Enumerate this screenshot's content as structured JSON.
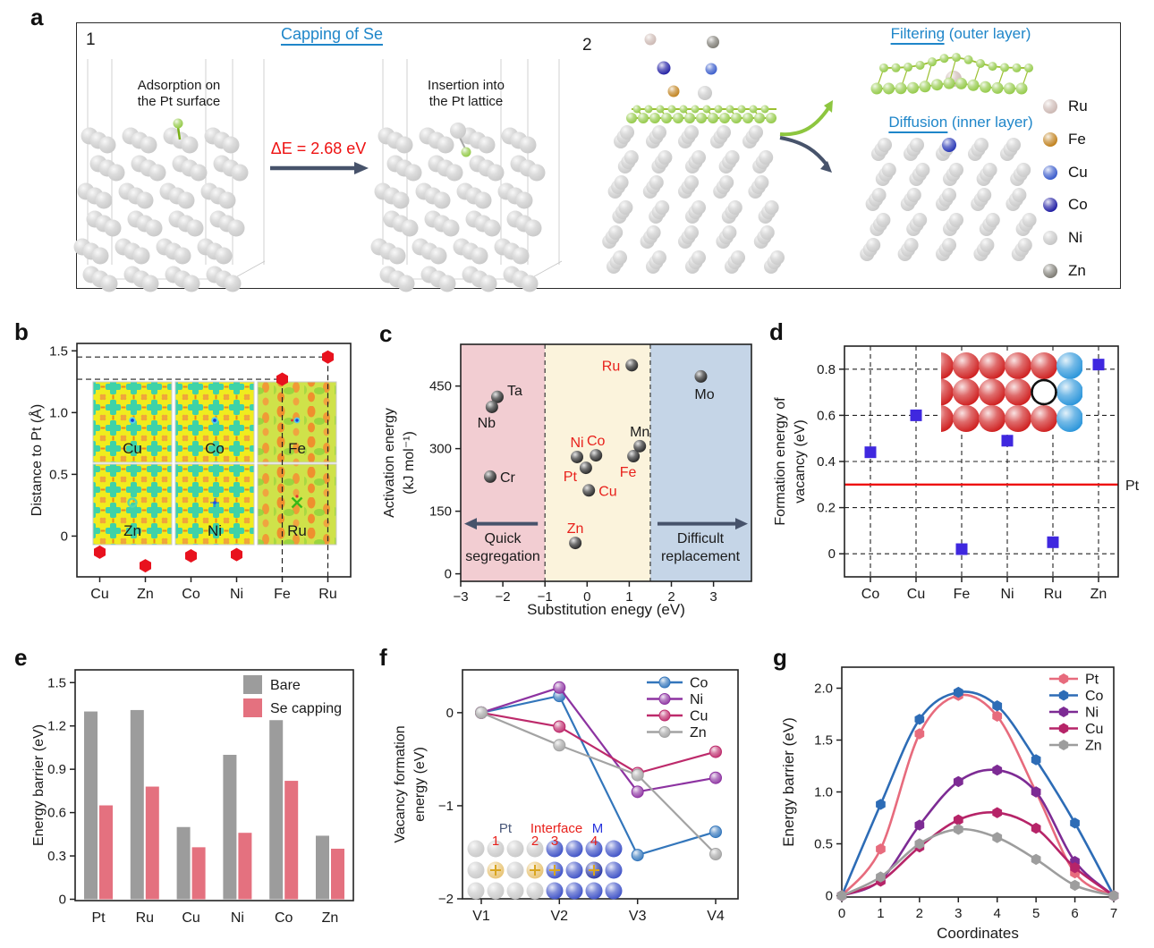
{
  "panel_letters": [
    "a",
    "b",
    "c",
    "d",
    "e",
    "f",
    "g"
  ],
  "colors": {
    "accent_blue": "#1f86c9",
    "accent_red": "#ee1111",
    "arrow_dark": "#47536b",
    "se_green": "#8cc63c",
    "pt_sphere": "#c6c6c6",
    "box_stroke": "#222222"
  },
  "panel_a": {
    "box1": {
      "number": "1",
      "title": "Capping of Se",
      "caption_left_lines": [
        "Adsorption on",
        "the Pt surface"
      ],
      "caption_right_lines": [
        "Insertion into",
        "the Pt lattice"
      ],
      "delta_e": "ΔE = 2.68 eV"
    },
    "box2": {
      "number": "2",
      "filtering": {
        "word": "Filtering",
        "rest": " (outer layer)"
      },
      "diffusion": {
        "word": "Diffusion",
        "rest": " (inner layer)"
      },
      "legend": [
        {
          "name": "Ru",
          "color": "#c9b4af"
        },
        {
          "name": "Fe",
          "color": "#bd7a10"
        },
        {
          "name": "Cu",
          "color": "#2e52c8"
        },
        {
          "name": "Co",
          "color": "#14119e"
        },
        {
          "name": "Ni",
          "color": "#c3c3c3"
        },
        {
          "name": "Zn",
          "color": "#76746c"
        }
      ]
    }
  },
  "chart_data": [
    {
      "id": "b",
      "type": "scatter",
      "ylabel": "Distance to Pt (Å)",
      "categories": [
        "Cu",
        "Zn",
        "Co",
        "Ni",
        "Fe",
        "Ru"
      ],
      "values": [
        -0.13,
        -0.24,
        -0.16,
        -0.15,
        1.27,
        1.45
      ],
      "ylim": [
        -0.33,
        1.56
      ],
      "ytick_vals": [
        0,
        0.5,
        1.0,
        1.5
      ],
      "ytick_labels": [
        "0",
        "0.5",
        "1.0",
        "1.5"
      ],
      "marker": "hexagon",
      "marker_color": "#e8121e",
      "guides": [
        {
          "value": 1.27,
          "category": "Fe"
        },
        {
          "value": 1.45,
          "category": "Ru"
        }
      ],
      "inset_labels": [
        [
          "Cu",
          "Co",
          "Fe"
        ],
        [
          "Zn",
          "Ni",
          "Ru"
        ]
      ]
    },
    {
      "id": "c",
      "type": "scatter",
      "xlabel": "Substitution enegy (eV)",
      "ylabel_lines": [
        "Activation energy",
        "(kJ mol⁻¹)"
      ],
      "xlim": [
        -3,
        3.9
      ],
      "ylim": [
        -18,
        550
      ],
      "xtick_vals": [
        -3,
        -2,
        -1,
        0,
        1,
        2,
        3
      ],
      "xtick_labels": [
        "−3",
        "−2",
        "−1",
        "0",
        "1",
        "2",
        "3"
      ],
      "ytick_vals": [
        0,
        150,
        300,
        450
      ],
      "ytick_labels": [
        "0",
        "150",
        "300",
        "450"
      ],
      "regions": [
        {
          "from": -3,
          "to": -1,
          "color": "#f2cdd2"
        },
        {
          "from": -1,
          "to": 1.5,
          "color": "#fbf3dc"
        },
        {
          "from": 1.5,
          "to": 3.9,
          "color": "#c5d5e7"
        }
      ],
      "divider_x": [
        -1,
        1.5
      ],
      "point_color": "#1a1a1a",
      "red_label_color": "#e8211c",
      "points": [
        {
          "label": "Ta",
          "x": -2.13,
          "y": 424,
          "red": false,
          "side": "right-above"
        },
        {
          "label": "Nb",
          "x": -2.26,
          "y": 400,
          "red": false,
          "side": "below-left"
        },
        {
          "label": "Cr",
          "x": -2.3,
          "y": 233,
          "red": false,
          "side": "right"
        },
        {
          "label": "Ni",
          "x": -0.24,
          "y": 280,
          "red": true,
          "side": "above"
        },
        {
          "label": "Pt",
          "x": -0.03,
          "y": 254,
          "red": true,
          "side": "left-below"
        },
        {
          "label": "Co",
          "x": 0.21,
          "y": 284,
          "red": true,
          "side": "above"
        },
        {
          "label": "Cu",
          "x": 0.04,
          "y": 200,
          "red": true,
          "side": "right"
        },
        {
          "label": "Zn",
          "x": -0.28,
          "y": 74,
          "red": true,
          "side": "above"
        },
        {
          "label": "Fe",
          "x": 1.1,
          "y": 282,
          "red": true,
          "side": "below-left"
        },
        {
          "label": "Mn",
          "x": 1.25,
          "y": 306,
          "red": false,
          "side": "above"
        },
        {
          "label": "Ru",
          "x": 1.06,
          "y": 500,
          "red": true,
          "side": "left"
        },
        {
          "label": "Mo",
          "x": 2.7,
          "y": 473,
          "red": false,
          "side": "below"
        }
      ],
      "arrow_y": 120,
      "left_label_lines": [
        "Quick",
        "segregation"
      ],
      "right_label_lines": [
        "Difficult",
        "replacement"
      ]
    },
    {
      "id": "d",
      "type": "scatter",
      "ylabel_lines": [
        "Formation energy of",
        "vacancy (eV)"
      ],
      "categories": [
        "Co",
        "Cu",
        "Fe",
        "Ni",
        "Ru",
        "Zn"
      ],
      "values": [
        0.44,
        0.6,
        0.02,
        0.49,
        0.05,
        0.82
      ],
      "ylim": [
        -0.1,
        0.9
      ],
      "ytick_vals": [
        0,
        0.2,
        0.4,
        0.6,
        0.8
      ],
      "ytick_labels": [
        "0",
        "0.2",
        "0.4",
        "0.6",
        "0.8"
      ],
      "marker": "square",
      "marker_color": "#3f28df",
      "reference": {
        "value": 0.3,
        "label": "Pt",
        "color": "#ee1111"
      }
    },
    {
      "id": "e",
      "type": "bar",
      "ylabel": "Energy barrier (eV)",
      "categories": [
        "Pt",
        "Ru",
        "Cu",
        "Ni",
        "Co",
        "Zn"
      ],
      "ylim": [
        0,
        1.6
      ],
      "ytick_vals": [
        0,
        0.3,
        0.6,
        0.9,
        1.2,
        1.5
      ],
      "ytick_labels": [
        "0",
        "0.3",
        "0.6",
        "0.9",
        "1.2",
        "1.5"
      ],
      "series": [
        {
          "name": "Bare",
          "color": "#9c9c9c",
          "values": [
            1.3,
            1.31,
            0.5,
            1.0,
            1.24,
            0.44
          ]
        },
        {
          "name": "Se capping",
          "color": "#e4717f",
          "values": [
            0.65,
            0.78,
            0.36,
            0.46,
            0.82,
            0.35
          ]
        }
      ]
    },
    {
      "id": "f",
      "type": "line",
      "ylabel_lines": [
        "Vacancy formation",
        "energy (eV)"
      ],
      "categories": [
        "V1",
        "V2",
        "V3",
        "V4"
      ],
      "ylim": [
        -2,
        0.46
      ],
      "ytick_vals": [
        0,
        -1,
        -2
      ],
      "ytick_labels": [
        "0",
        "−1",
        "−2"
      ],
      "series": [
        {
          "name": "Co",
          "color": "#3376bb",
          "values": [
            0,
            0.18,
            -1.53,
            -1.28
          ]
        },
        {
          "name": "Ni",
          "color": "#8d33a1",
          "values": [
            0,
            0.27,
            -0.85,
            -0.7
          ]
        },
        {
          "name": "Cu",
          "color": "#bd2a6b",
          "values": [
            0,
            -0.15,
            -0.65,
            -0.42
          ]
        },
        {
          "name": "Zn",
          "color": "#a3a3a3",
          "values": [
            0,
            -0.35,
            -0.67,
            -1.52
          ]
        }
      ],
      "inset": {
        "region_labels": [
          {
            "text": "Pt",
            "color": "#49587a"
          },
          {
            "text": "Interface",
            "color": "#e8211c"
          },
          {
            "text": "M",
            "color": "#2734dd"
          }
        ],
        "site_numbers": [
          "1",
          "2",
          "3",
          "4"
        ]
      }
    },
    {
      "id": "g",
      "type": "line",
      "xlabel": "Coordinates",
      "ylabel": "Energy barrier (eV)",
      "x": [
        0,
        1,
        2,
        3,
        4,
        5,
        6,
        7
      ],
      "xtick_labels": [
        "0",
        "1",
        "2",
        "3",
        "4",
        "5",
        "6",
        "7"
      ],
      "ylim": [
        0,
        2.2
      ],
      "ytick_vals": [
        0,
        0.5,
        1.0,
        1.5,
        2.0
      ],
      "ytick_labels": [
        "0",
        "0.5",
        "1.0",
        "1.5",
        "2.0"
      ],
      "smooth": true,
      "marker": "hexagon",
      "series": [
        {
          "name": "Pt",
          "color": "#e76b7d",
          "values": [
            0,
            0.45,
            1.56,
            1.93,
            1.73,
            1.0,
            0.22,
            0
          ]
        },
        {
          "name": "Co",
          "color": "#2d6cb6",
          "values": [
            0,
            0.88,
            1.7,
            1.96,
            1.83,
            1.31,
            0.7,
            0
          ]
        },
        {
          "name": "Ni",
          "color": "#7d2b94",
          "values": [
            0,
            0.15,
            0.68,
            1.1,
            1.21,
            1.0,
            0.33,
            0
          ]
        },
        {
          "name": "Cu",
          "color": "#b62468",
          "values": [
            0,
            0.14,
            0.47,
            0.73,
            0.8,
            0.65,
            0.27,
            0
          ]
        },
        {
          "name": "Zn",
          "color": "#9d9d9d",
          "values": [
            0,
            0.18,
            0.5,
            0.64,
            0.56,
            0.35,
            0.1,
            0
          ]
        }
      ]
    }
  ]
}
